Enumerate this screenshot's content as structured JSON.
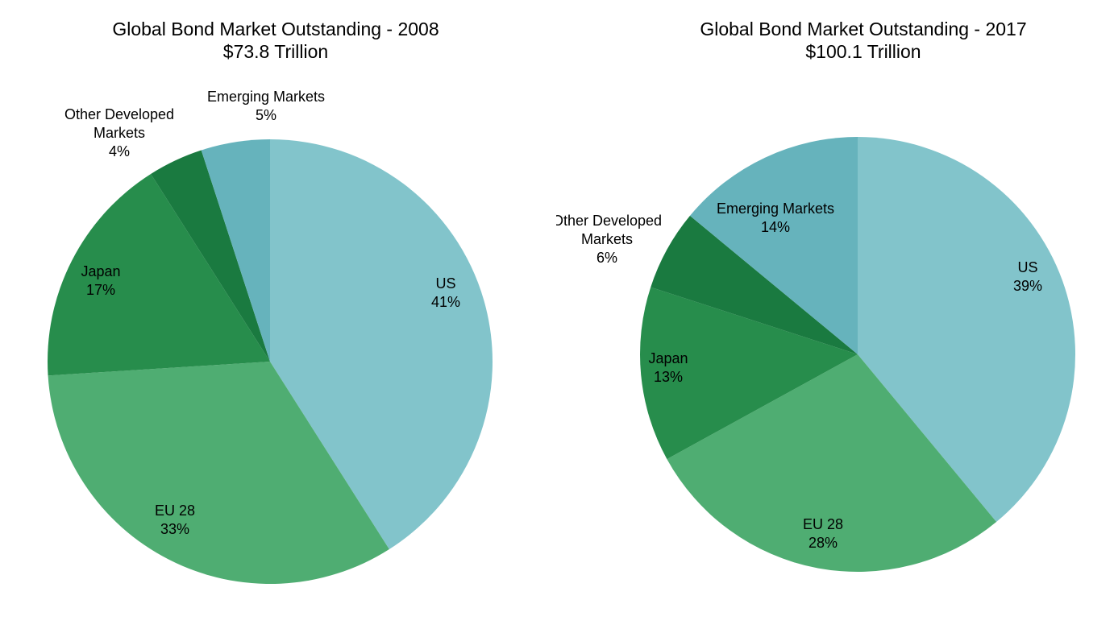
{
  "chart_data": [
    {
      "type": "pie",
      "title": "Global Bond Market Outstanding - 2008",
      "subtitle": "$73.8 Trillion",
      "start_angle_deg": 0,
      "direction": "clockwise",
      "slices": [
        {
          "label": "US",
          "value": 41,
          "value_label": "41%",
          "color": "#82c4cb"
        },
        {
          "label": "EU 28",
          "value": 33,
          "value_label": "33%",
          "color": "#4fad72"
        },
        {
          "label": "Japan",
          "value": 17,
          "value_label": "17%",
          "color": "#278d4c"
        },
        {
          "label": "Other Developed Markets",
          "label_lines": [
            "Other Developed",
            "Markets"
          ],
          "value": 4,
          "value_label": "4%",
          "color": "#1a7a40"
        },
        {
          "label": "Emerging Markets",
          "value": 5,
          "value_label": "5%",
          "color": "#66b3bc"
        }
      ]
    },
    {
      "type": "pie",
      "title": "Global Bond Market Outstanding - 2017",
      "subtitle": "$100.1 Trillion",
      "start_angle_deg": 0,
      "direction": "clockwise",
      "slices": [
        {
          "label": "US",
          "value": 39,
          "value_label": "39%",
          "color": "#82c4cb"
        },
        {
          "label": "EU 28",
          "value": 28,
          "value_label": "28%",
          "color": "#4fad72"
        },
        {
          "label": "Japan",
          "value": 13,
          "value_label": "13%",
          "color": "#278d4c"
        },
        {
          "label": "Other Developed Markets",
          "label_lines": [
            "Other Developed",
            "Markets"
          ],
          "value": 6,
          "value_label": "6%",
          "color": "#1a7a40"
        },
        {
          "label": "Emerging Markets",
          "value": 14,
          "value_label": "14%",
          "color": "#66b3bc"
        }
      ]
    }
  ]
}
